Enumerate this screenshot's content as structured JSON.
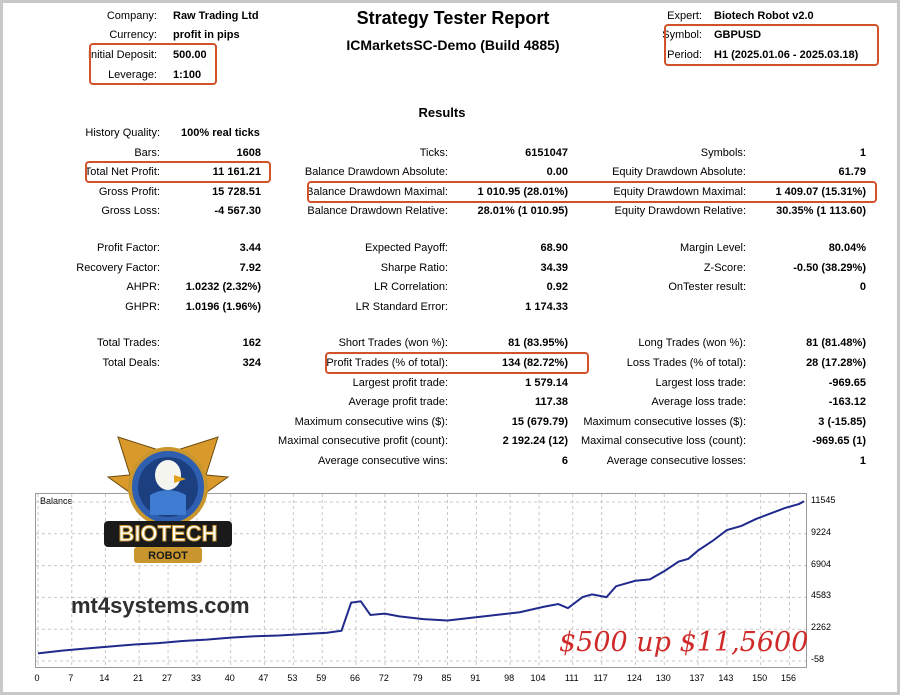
{
  "header": {
    "company_label": "Company:",
    "company_value": "Raw Trading Ltd",
    "currency_label": "Currency:",
    "currency_value": "profit in pips",
    "deposit_label": "Initial Deposit:",
    "deposit_value": "500.00",
    "leverage_label": "Leverage:",
    "leverage_value": "1:100",
    "title": "Strategy Tester Report",
    "subtitle": "ICMarketsSC-Demo (Build 4885)",
    "expert_label": "Expert:",
    "expert_value": "Biotech Robot v2.0",
    "symbol_label": "Symbol:",
    "symbol_value": "GBPUSD",
    "period_label": "Period:",
    "period_value": "H1 (2025.01.06 - 2025.03.18)"
  },
  "results_title": "Results",
  "col1": [
    {
      "label": "History Quality:",
      "value": "100% real ticks"
    },
    {
      "label": "Bars:",
      "value": "1608"
    },
    {
      "label": "Total Net Profit:",
      "value": "11 161.21"
    },
    {
      "label": "Gross Profit:",
      "value": "15 728.51"
    },
    {
      "label": "Gross Loss:",
      "value": "-4 567.30"
    },
    {
      "label": "Profit Factor:",
      "value": "3.44"
    },
    {
      "label": "Recovery Factor:",
      "value": "7.92"
    },
    {
      "label": "AHPR:",
      "value": "1.0232 (2.32%)"
    },
    {
      "label": "GHPR:",
      "value": "1.0196 (1.96%)"
    },
    {
      "label": "Total Trades:",
      "value": "162"
    },
    {
      "label": "Total Deals:",
      "value": "324"
    }
  ],
  "col2": [
    {
      "label": "Ticks:",
      "value": "6151047"
    },
    {
      "label": "Balance Drawdown Absolute:",
      "value": "0.00"
    },
    {
      "label": "Balance Drawdown Maximal:",
      "value": "1 010.95 (28.01%)"
    },
    {
      "label": "Balance Drawdown Relative:",
      "value": "28.01% (1 010.95)"
    },
    {
      "label": "Expected Payoff:",
      "value": "68.90"
    },
    {
      "label": "Sharpe Ratio:",
      "value": "34.39"
    },
    {
      "label": "LR Correlation:",
      "value": "0.92"
    },
    {
      "label": "LR Standard Error:",
      "value": "1 174.33"
    },
    {
      "label": "Short Trades (won %):",
      "value": "81 (83.95%)"
    },
    {
      "label": "Profit Trades (% of total):",
      "value": "134 (82.72%)"
    },
    {
      "label": "Largest profit trade:",
      "value": "1 579.14"
    },
    {
      "label": "Average profit trade:",
      "value": "117.38"
    },
    {
      "label": "Maximum consecutive wins ($):",
      "value": "15 (679.79)"
    },
    {
      "label": "Maximal consecutive profit (count):",
      "value": "2 192.24 (12)"
    },
    {
      "label": "Average consecutive wins:",
      "value": "6"
    }
  ],
  "col3": [
    {
      "label": "Symbols:",
      "value": "1"
    },
    {
      "label": "Equity Drawdown Absolute:",
      "value": "61.79"
    },
    {
      "label": "Equity Drawdown Maximal:",
      "value": "1 409.07 (15.31%)"
    },
    {
      "label": "Equity Drawdown Relative:",
      "value": "30.35% (1 113.60)"
    },
    {
      "label": "Margin Level:",
      "value": "80.04%"
    },
    {
      "label": "Z-Score:",
      "value": "-0.50 (38.29%)"
    },
    {
      "label": "OnTester result:",
      "value": "0"
    },
    {
      "label": "Long Trades (won %):",
      "value": "81 (81.48%)"
    },
    {
      "label": "Loss Trades (% of total):",
      "value": "28 (17.28%)"
    },
    {
      "label": "Largest loss trade:",
      "value": "-969.65"
    },
    {
      "label": "Average loss trade:",
      "value": "-163.12"
    },
    {
      "label": "Maximum consecutive losses ($):",
      "value": "3 (-15.85)"
    },
    {
      "label": "Maximal consecutive loss (count):",
      "value": "-969.65 (1)"
    },
    {
      "label": "Average consecutive losses:",
      "value": "1"
    }
  ],
  "logo": {
    "text_top": "BIOTECH",
    "text_bottom": "ROBOT"
  },
  "watermark": "mt4systems.com",
  "annotation": "$500 up $11,5600",
  "colors": {
    "highlight": "#d2532a",
    "balance_line": "#1f2a8c",
    "annotation": "#cf2a2a"
  },
  "chart_data": {
    "type": "line",
    "title": "Balance",
    "y_ticks": [
      "11545",
      "9224",
      "6904",
      "4583",
      "2262",
      "-58"
    ],
    "x_ticks": [
      "0",
      "7",
      "14",
      "21",
      "27",
      "33",
      "40",
      "47",
      "53",
      "59",
      "66",
      "72",
      "79",
      "85",
      "91",
      "98",
      "104",
      "111",
      "117",
      "124",
      "130",
      "137",
      "143",
      "150",
      "156"
    ],
    "ylim": [
      -58,
      11545
    ],
    "xlim": [
      0,
      159
    ],
    "series": [
      {
        "x": [
          0,
          5,
          10,
          15,
          20,
          25,
          30,
          35,
          40,
          45,
          50,
          55,
          60,
          63,
          65,
          67,
          69,
          72,
          75,
          80,
          85,
          90,
          95,
          100,
          105,
          108,
          110,
          113,
          115,
          118,
          120,
          124,
          127,
          130,
          133,
          135,
          137,
          140,
          143,
          146,
          149,
          152,
          155,
          158,
          159
        ],
        "values": [
          500,
          700,
          850,
          1000,
          1150,
          1250,
          1400,
          1500,
          1650,
          1750,
          1800,
          1900,
          2000,
          2150,
          4200,
          4300,
          3300,
          3400,
          3200,
          3000,
          2900,
          3100,
          3300,
          3500,
          3900,
          4100,
          3800,
          4600,
          4800,
          4600,
          5400,
          5800,
          5900,
          6500,
          7200,
          7400,
          8000,
          8700,
          9500,
          9800,
          10300,
          10700,
          11100,
          11400,
          11600
        ]
      }
    ]
  }
}
